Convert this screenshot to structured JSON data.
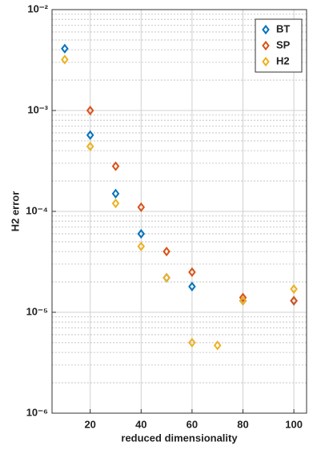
{
  "chart_data": {
    "type": "scatter",
    "xlabel": "reduced dimensionality",
    "ylabel": "H2 error",
    "xlim": [
      5,
      105
    ],
    "xticks": [
      20,
      40,
      60,
      80,
      100
    ],
    "ylim": [
      1e-06,
      0.01
    ],
    "yscale": "log",
    "yticks": [
      {
        "value": 1e-06,
        "label": "10⁻⁶"
      },
      {
        "value": 1e-05,
        "label": "10⁻⁵"
      },
      {
        "value": 0.0001,
        "label": "10⁻⁴"
      },
      {
        "value": 0.001,
        "label": "10⁻³"
      },
      {
        "value": 0.01,
        "label": "10⁻²"
      }
    ],
    "grid": true,
    "minor_grid": true,
    "legend": "northeast",
    "series": [
      {
        "name": "BT",
        "color": "#0072bd",
        "x": [
          10,
          20,
          30,
          40,
          50,
          60,
          80,
          100
        ],
        "values": [
          0.0041,
          0.00057,
          0.00015,
          6e-05,
          2.2e-05,
          1.8e-05,
          1.3e-05,
          1.3e-05
        ]
      },
      {
        "name": "SP",
        "color": "#d95319",
        "x": [
          20,
          30,
          40,
          50,
          60,
          80,
          100
        ],
        "values": [
          0.001,
          0.00028,
          0.00011,
          4e-05,
          2.5e-05,
          1.4e-05,
          1.3e-05
        ]
      },
      {
        "name": "H2",
        "color": "#edb120",
        "x": [
          10,
          20,
          30,
          40,
          50,
          60,
          70,
          80,
          100
        ],
        "values": [
          0.0032,
          0.00044,
          0.00012,
          4.5e-05,
          2.2e-05,
          5e-06,
          4.7e-06,
          1.3e-05,
          1.7e-05
        ]
      }
    ]
  }
}
